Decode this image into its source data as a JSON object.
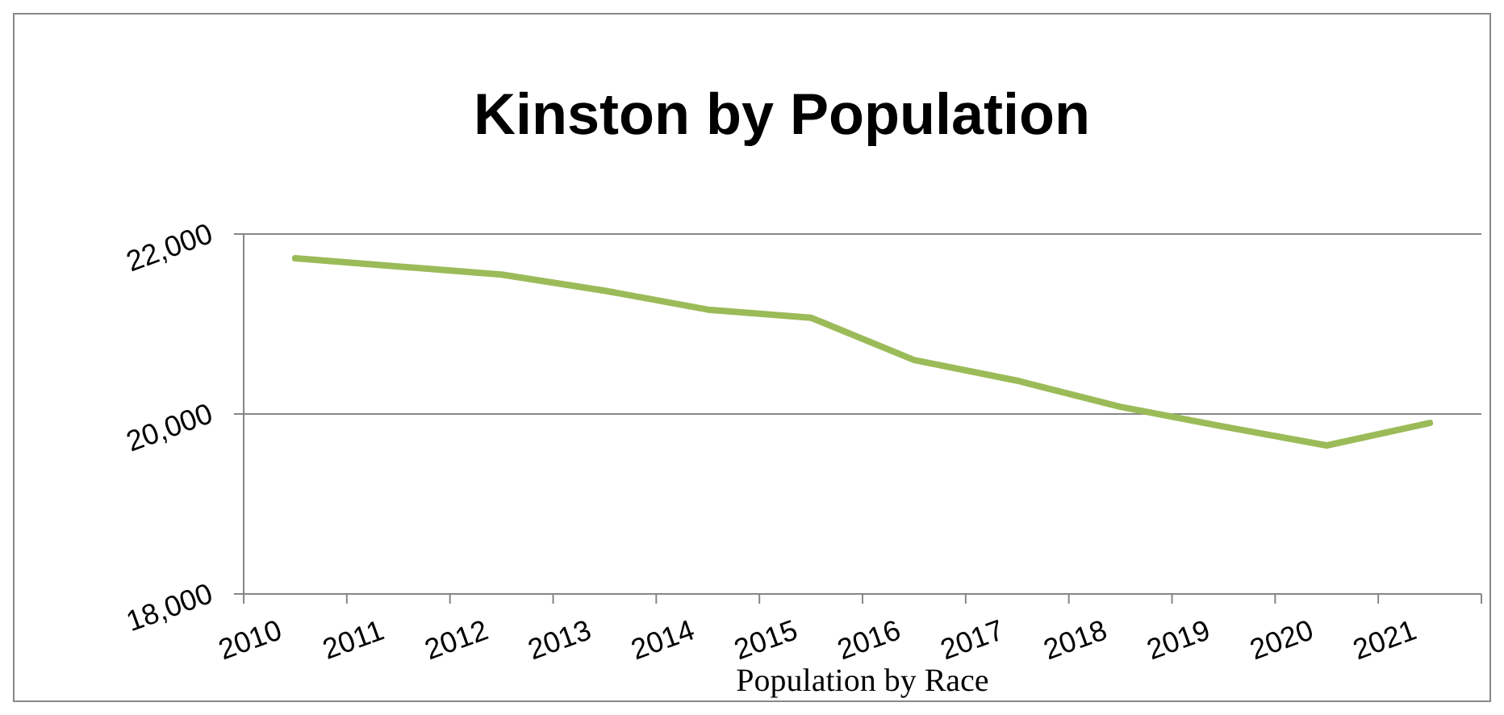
{
  "chart_data": {
    "type": "line",
    "title": "Kinston by Population",
    "categories": [
      "2010",
      "2011",
      "2012",
      "2013",
      "2014",
      "2015",
      "2016",
      "2017",
      "2018",
      "2019",
      "2020",
      "2021"
    ],
    "series": [
      {
        "color": "#9bbb59",
        "values": [
          21730,
          21640,
          21550,
          21370,
          21160,
          21070,
          20600,
          20370,
          20080,
          19860,
          19650,
          19900
        ]
      }
    ],
    "ylim": [
      18000,
      22000
    ],
    "yticks": [
      {
        "value": 18000,
        "label": "18,000"
      },
      {
        "value": 20000,
        "label": "20,000"
      },
      {
        "value": 22000,
        "label": "22,000"
      }
    ],
    "grid": "y",
    "marker": "none",
    "line_style": "solid",
    "annotations": [
      "Population by Race"
    ]
  }
}
